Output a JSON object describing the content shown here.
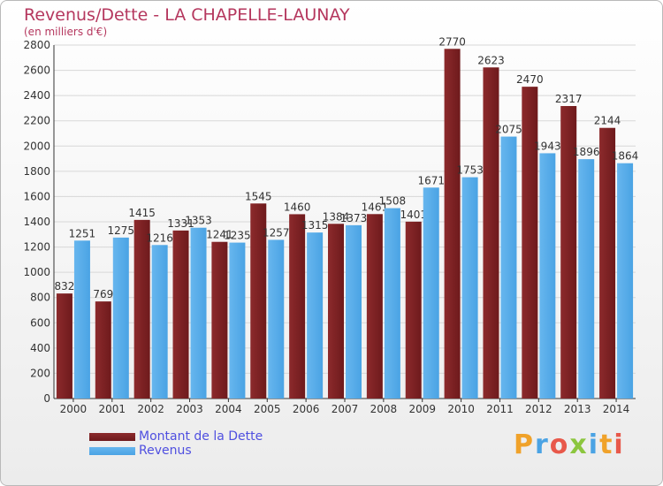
{
  "title": "Revenus/Dette - LA CHAPELLE-LAUNAY",
  "subtitle": "(en milliers d'€)",
  "colors": {
    "dette": "#6e1a1c",
    "dette_light": "#8c2a2c",
    "revenus": "#4aa3e4",
    "revenus_light": "#67b6ee",
    "axis": "#333333",
    "grid": "#d7d7d7",
    "title": "#b5375e",
    "legend_text": "#4f4fe0"
  },
  "legend": {
    "items": [
      {
        "label": "Montant de la Dette",
        "color": "#6e1a1c"
      },
      {
        "label": "Revenus",
        "color": "#4aa3e4"
      }
    ]
  },
  "logo": {
    "text": "Proxiti",
    "letters": [
      "P",
      "r",
      "o",
      "x",
      "i",
      "t",
      "i"
    ],
    "letter_colors": [
      "#f0a22a",
      "#4aa3e4",
      "#e8584a",
      "#8cc63f",
      "#4aa3e4",
      "#f0a22a",
      "#e8584a"
    ]
  },
  "chart_data": {
    "type": "bar",
    "title": "Revenus/Dette - LA CHAPELLE-LAUNAY",
    "subtitle": "(en milliers d'€)",
    "categories": [
      "2000",
      "2001",
      "2002",
      "2003",
      "2004",
      "2005",
      "2006",
      "2007",
      "2008",
      "2009",
      "2010",
      "2011",
      "2012",
      "2013",
      "2014"
    ],
    "series": [
      {
        "name": "Montant de la Dette",
        "values": [
          832,
          769,
          1415,
          1331,
          1241,
          1545,
          1460,
          1384,
          1461,
          1401,
          2770,
          2623,
          2470,
          2317,
          2144
        ]
      },
      {
        "name": "Revenus",
        "values": [
          1251,
          1275,
          1216,
          1353,
          1235,
          1257,
          1315,
          1373,
          1508,
          1671,
          1753,
          2075,
          1943,
          1896,
          1864
        ]
      }
    ],
    "ylim": [
      0,
      2800
    ],
    "yticks": [
      0,
      200,
      400,
      600,
      800,
      1000,
      1200,
      1400,
      1600,
      1800,
      2000,
      2200,
      2400,
      2600,
      2800
    ],
    "xlabel": "",
    "ylabel": "",
    "grid": true,
    "legend_position": "bottom-left"
  }
}
